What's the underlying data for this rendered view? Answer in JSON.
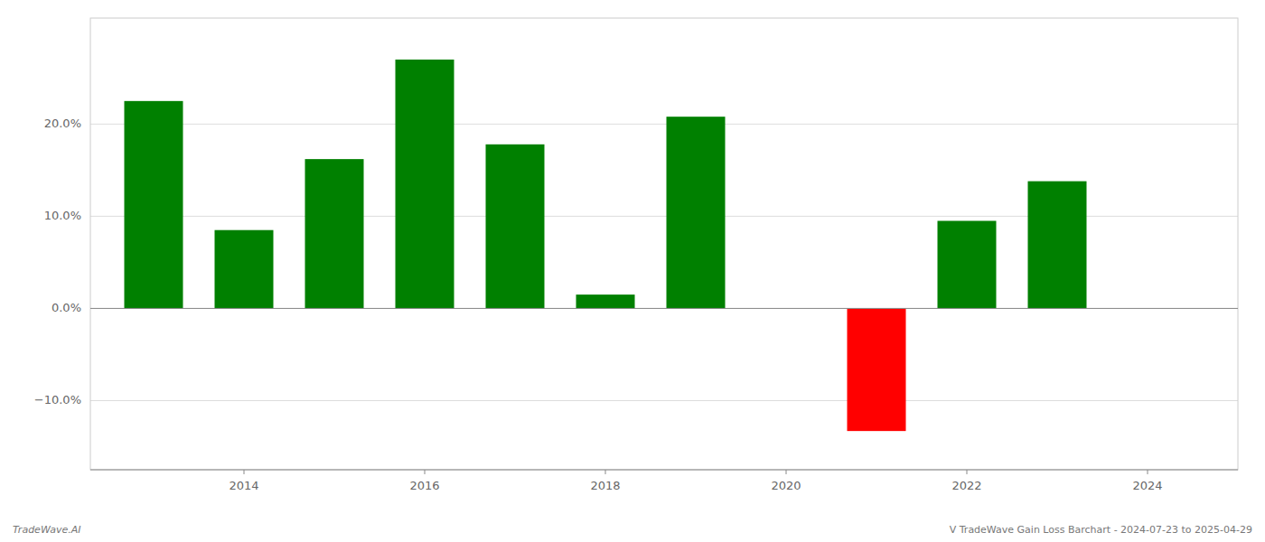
{
  "chart_data": {
    "type": "bar",
    "x": [
      2013,
      2014,
      2015,
      2016,
      2017,
      2018,
      2019,
      2021,
      2022,
      2023
    ],
    "values": [
      0.225,
      0.085,
      0.162,
      0.27,
      0.178,
      0.015,
      0.208,
      -0.133,
      0.095,
      0.138
    ],
    "colors": [
      "#008000",
      "#008000",
      "#008000",
      "#008000",
      "#008000",
      "#008000",
      "#008000",
      "#ff0000",
      "#008000",
      "#008000"
    ],
    "xlim": [
      2012.3,
      2025.0
    ],
    "ylim": [
      -0.175,
      0.315
    ],
    "xticks": [
      2014,
      2016,
      2018,
      2020,
      2022,
      2024
    ],
    "yticks": [
      {
        "value": -0.1,
        "label": "−10.0%"
      },
      {
        "value": 0.0,
        "label": "0.0%"
      },
      {
        "value": 0.1,
        "label": "10.0%"
      },
      {
        "value": 0.2,
        "label": "20.0%"
      }
    ],
    "grid": true,
    "annotations": [
      "TradeWave.AI",
      "V TradeWave Gain Loss Barchart - 2024-07-23 to 2025-04-29"
    ]
  }
}
